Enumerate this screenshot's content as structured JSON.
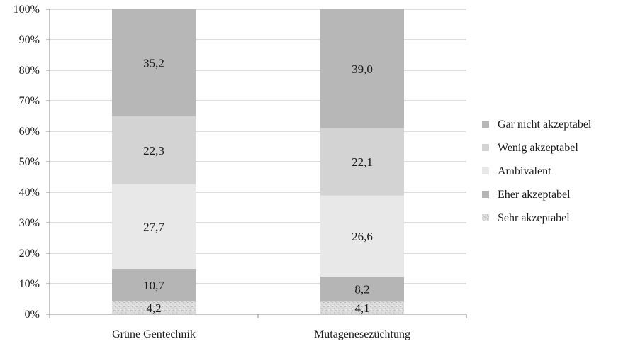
{
  "chart_data": {
    "type": "bar",
    "stacked": true,
    "percent": true,
    "categories": [
      "Grüne Gentechnik",
      "Mutagenesezüchtung"
    ],
    "series": [
      {
        "name": "Sehr akzeptabel",
        "values": [
          4.2,
          4.1
        ],
        "labels": [
          "4,2",
          "4,1"
        ],
        "color": "#d9d9d9",
        "pattern": "speckle"
      },
      {
        "name": "Eher akzeptabel",
        "values": [
          10.7,
          8.2
        ],
        "labels": [
          "10,7",
          "8,2"
        ],
        "color": "#b5b5b5"
      },
      {
        "name": "Ambivalent",
        "values": [
          27.7,
          26.6
        ],
        "labels": [
          "27,7",
          "26,6"
        ],
        "color": "#e8e8e8"
      },
      {
        "name": "Wenig akzeptabel",
        "values": [
          22.3,
          22.1
        ],
        "labels": [
          "22,3",
          "22,1"
        ],
        "color": "#d3d3d3"
      },
      {
        "name": "Gar nicht akzeptabel",
        "values": [
          35.2,
          39.0
        ],
        "labels": [
          "35,2",
          "39,0"
        ],
        "color": "#b7b7b7"
      }
    ],
    "y_ticks": [
      "0%",
      "10%",
      "20%",
      "30%",
      "40%",
      "50%",
      "60%",
      "70%",
      "80%",
      "90%",
      "100%"
    ],
    "ylim": [
      0,
      100
    ],
    "grid": true,
    "legend": {
      "placement": "right",
      "order": [
        "Gar nicht akzeptabel",
        "Wenig akzeptabel",
        "Ambivalent",
        "Eher akzeptabel",
        "Sehr akzeptabel"
      ]
    },
    "title": "",
    "xlabel": "",
    "ylabel": ""
  }
}
